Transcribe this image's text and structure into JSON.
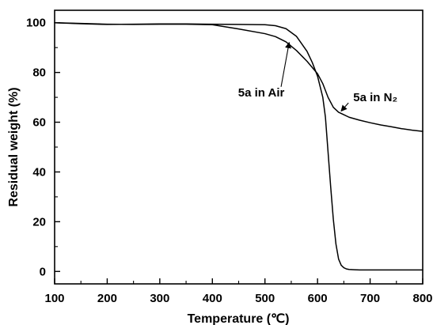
{
  "chart_data": {
    "type": "line",
    "title": "",
    "xlabel": "Temperature (℃)",
    "ylabel": "Residual weight (%)",
    "xlim": [
      100,
      800
    ],
    "ylim": [
      -5,
      105
    ],
    "xticks": [
      100,
      200,
      300,
      400,
      500,
      600,
      700,
      800
    ],
    "yticks": [
      0,
      20,
      40,
      60,
      80,
      100
    ],
    "grid": false,
    "legend": "none",
    "series": [
      {
        "name": "5a in Air",
        "color": "#000000",
        "x": [
          100,
          150,
          200,
          250,
          300,
          350,
          400,
          450,
          500,
          520,
          540,
          560,
          580,
          590,
          600,
          610,
          615,
          620,
          625,
          630,
          635,
          640,
          645,
          650,
          655,
          660,
          670,
          680,
          700,
          750,
          800
        ],
        "y": [
          100.0,
          99.6,
          99.3,
          99.4,
          99.5,
          99.5,
          99.4,
          99.3,
          99.2,
          98.8,
          97.6,
          94.5,
          88.5,
          84.0,
          78.5,
          70.0,
          62.0,
          48.0,
          34.0,
          21.0,
          11.0,
          5.0,
          2.5,
          1.5,
          1.0,
          0.8,
          0.7,
          0.6,
          0.6,
          0.6,
          0.6
        ]
      },
      {
        "name": "5a in N₂",
        "color": "#000000",
        "x": [
          100,
          150,
          200,
          250,
          300,
          350,
          400,
          450,
          500,
          520,
          540,
          560,
          580,
          600,
          610,
          620,
          630,
          640,
          650,
          660,
          680,
          700,
          720,
          740,
          760,
          780,
          800
        ],
        "y": [
          100.0,
          99.7,
          99.4,
          99.3,
          99.4,
          99.4,
          99.2,
          97.5,
          95.6,
          94.4,
          92.3,
          88.8,
          84.5,
          79.5,
          75.5,
          70.0,
          66.0,
          64.0,
          63.0,
          62.0,
          60.8,
          59.8,
          58.9,
          58.2,
          57.4,
          56.8,
          56.3
        ]
      }
    ],
    "annotations": [
      {
        "text": "5a in Air",
        "label_x": 493,
        "label_y": 72,
        "target_x": 546,
        "target_y": 92
      },
      {
        "text": "5a in N₂",
        "label_x": 710,
        "label_y": 70,
        "target_x": 645,
        "target_y": 64.5
      }
    ]
  },
  "icons": {
    "arrowhead": "arrowhead-icon"
  }
}
